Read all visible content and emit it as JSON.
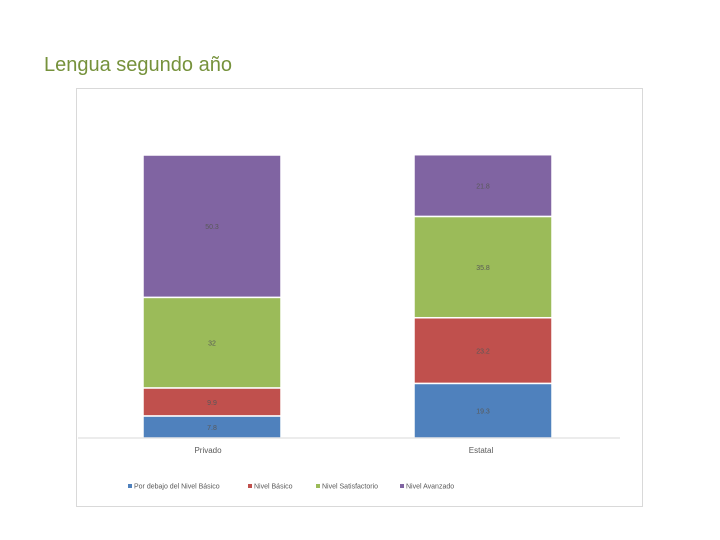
{
  "slide": {
    "title": "Lengua segundo año"
  },
  "chart_data": {
    "type": "bar",
    "stacked": true,
    "title": "",
    "xlabel": "",
    "ylabel": "",
    "categories": [
      "Privado",
      "Estatal"
    ],
    "series": [
      {
        "name": "Por debajo del Nivel Básico",
        "values": [
          7.8,
          19.3
        ],
        "labels": [
          "7.8",
          "19.3"
        ],
        "color": "#4f81bd"
      },
      {
        "name": "Nivel Básico",
        "values": [
          9.9,
          23.2
        ],
        "labels": [
          "9.9",
          "23.2"
        ],
        "color": "#c0504d"
      },
      {
        "name": "Nivel Satisfactorio",
        "values": [
          32,
          35.8
        ],
        "labels": [
          "32",
          "35.8"
        ],
        "color": "#9bbb59"
      },
      {
        "name": "Nivel Avanzado",
        "values": [
          50.3,
          21.8
        ],
        "labels": [
          "50.3",
          "21.8"
        ],
        "color": "#8064a2"
      }
    ],
    "ylim": [
      0,
      100
    ],
    "grid": false,
    "legend_position": "bottom",
    "label_color": "#595959",
    "axis_color": "#d9d9d9"
  }
}
